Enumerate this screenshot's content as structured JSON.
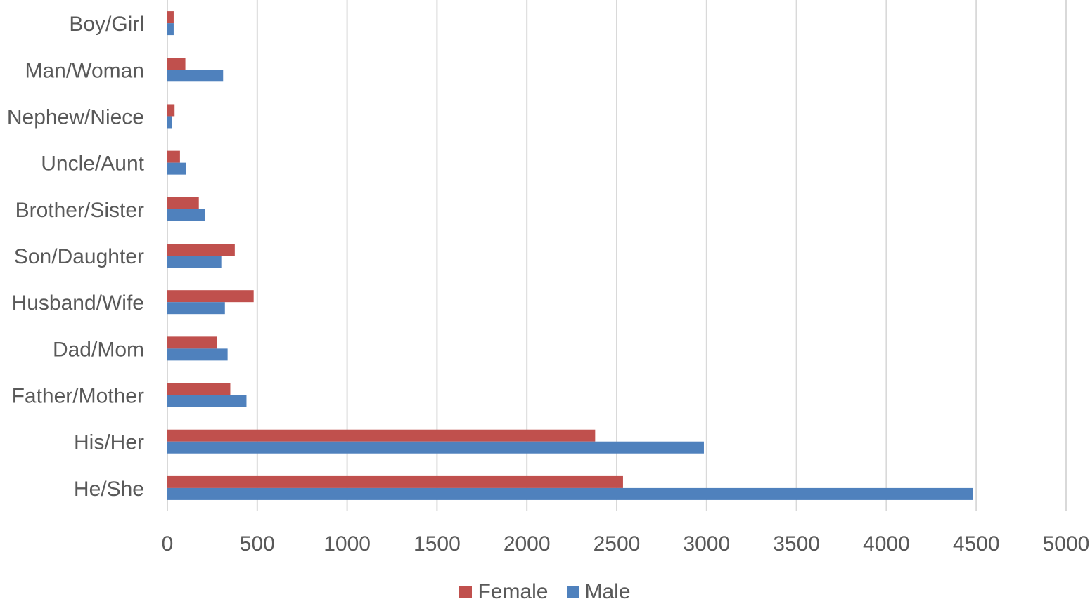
{
  "chart_data": {
    "type": "bar",
    "orientation": "horizontal",
    "categories": [
      "Boy/Girl",
      "Man/Woman",
      "Nephew/Niece",
      "Uncle/Aunt",
      "Brother/Sister",
      "Son/Daughter",
      "Husband/Wife",
      "Dad/Mom",
      "Father/Mother",
      "His/Her",
      "He/She"
    ],
    "series": [
      {
        "name": "Female",
        "color": "#c0504d",
        "values": [
          35,
          100,
          40,
          70,
          175,
          375,
          480,
          275,
          350,
          2380,
          2535
        ]
      },
      {
        "name": "Male",
        "color": "#4f81bd",
        "values": [
          35,
          310,
          25,
          105,
          210,
          300,
          320,
          335,
          440,
          2985,
          4480
        ]
      }
    ],
    "xlim": [
      0,
      5000
    ],
    "xticks": [
      0,
      500,
      1000,
      1500,
      2000,
      2500,
      3000,
      3500,
      4000,
      4500,
      5000
    ],
    "grid": true,
    "legend_position": "bottom",
    "title": "",
    "xlabel": "",
    "ylabel": ""
  }
}
